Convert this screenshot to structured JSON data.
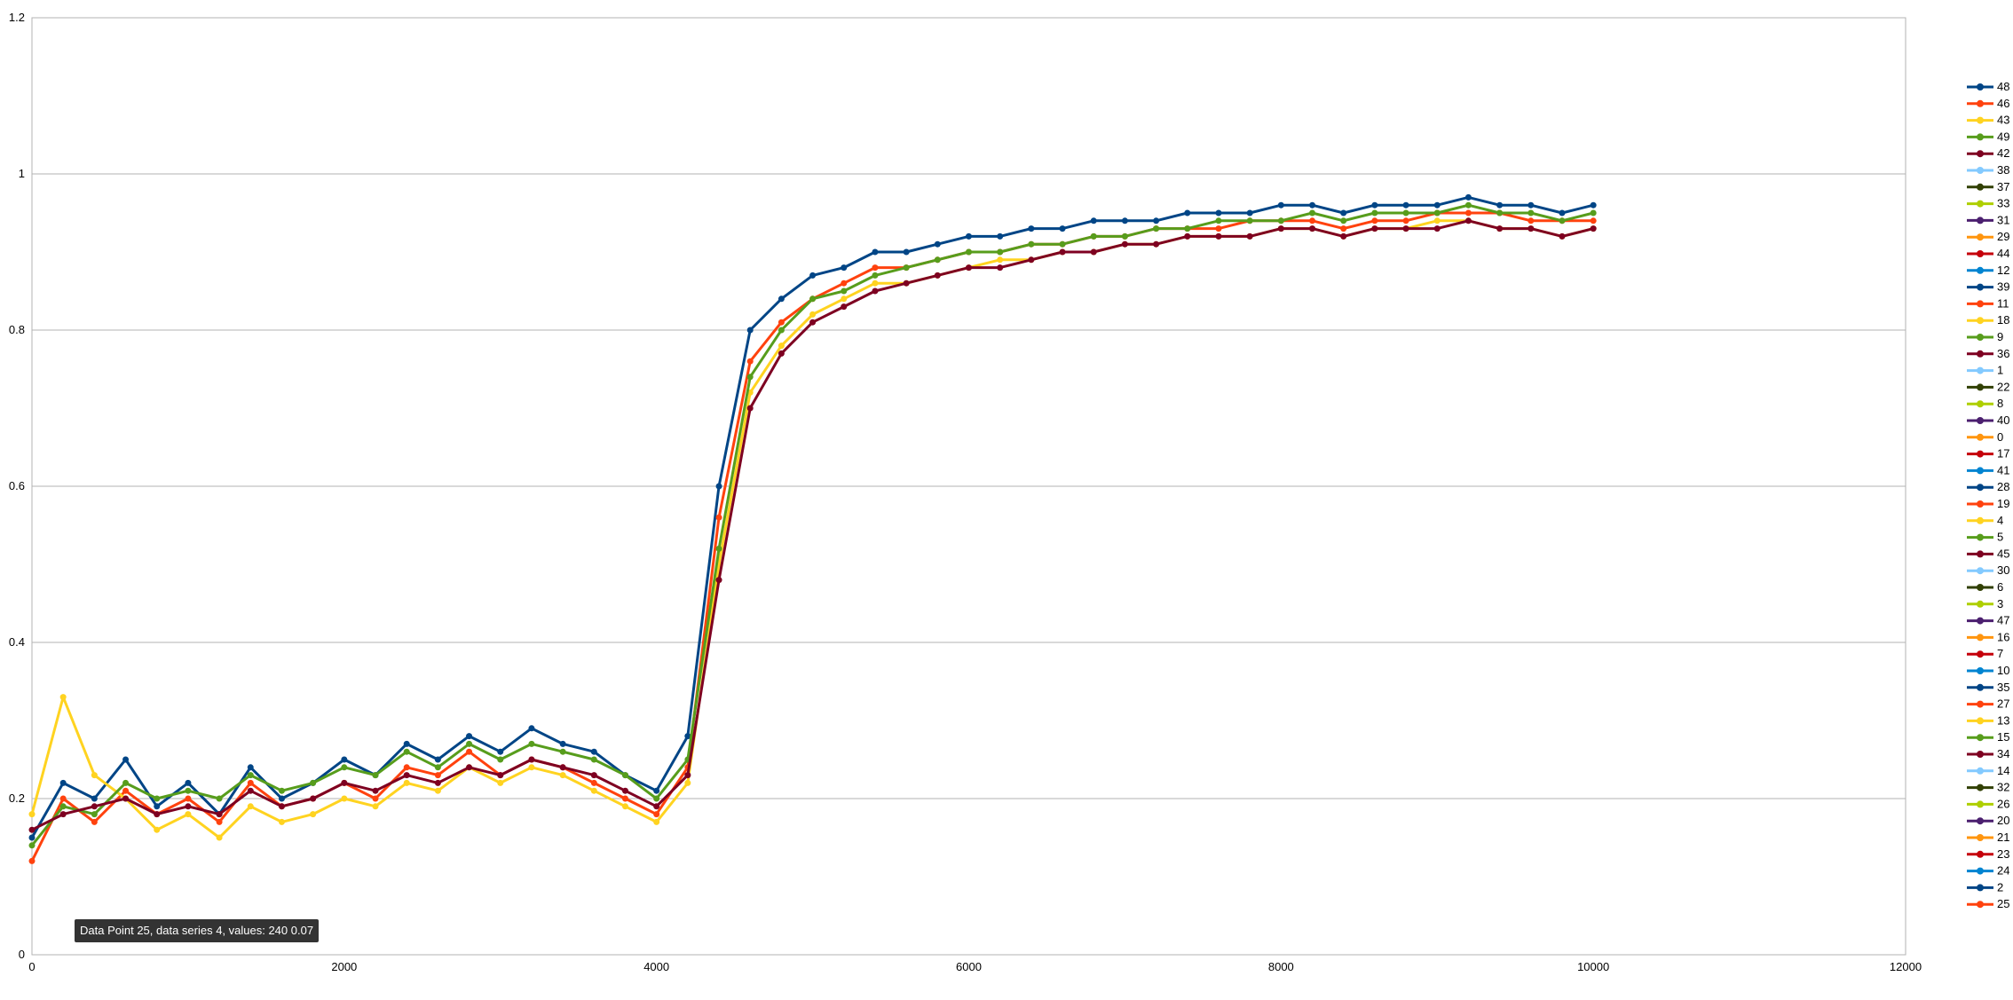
{
  "chart_data": {
    "type": "line",
    "title": "",
    "xlabel": "",
    "ylabel": "",
    "xlim": [
      0,
      12000
    ],
    "ylim": [
      0,
      1.2
    ],
    "x_ticks": [
      0,
      2000,
      4000,
      6000,
      8000,
      10000,
      12000
    ],
    "x_tick_labels": [
      "0",
      "2000",
      "4000",
      "6000",
      "8000",
      "10000",
      "12000"
    ],
    "y_ticks": [
      0,
      0.2,
      0.4,
      0.6,
      0.8,
      1,
      1.2
    ],
    "y_tick_labels": [
      "0",
      "0.2",
      "0.4",
      "0.6",
      "0.8",
      "1",
      "1.2"
    ],
    "grid": "horizontal major gridlines",
    "legend_position": "right",
    "x_sample_step": 200,
    "series": [
      {
        "name": "48",
        "color": "#004586",
        "marker": "square",
        "values": [
          0.15,
          0.22,
          0.2,
          0.25,
          0.19,
          0.22,
          0.18,
          0.24,
          0.2,
          0.22,
          0.25,
          0.23,
          0.27,
          0.25,
          0.28,
          0.26,
          0.29,
          0.27,
          0.26,
          0.23,
          0.21,
          0.28,
          0.6,
          0.8,
          0.84,
          0.87,
          0.88,
          0.9,
          0.9,
          0.91,
          0.92,
          0.92,
          0.93,
          0.93,
          0.94,
          0.94,
          0.94,
          0.95,
          0.95,
          0.95,
          0.96,
          0.96,
          0.95,
          0.96,
          0.96,
          0.96,
          0.97,
          0.96,
          0.96,
          0.95,
          0.96
        ]
      },
      {
        "name": "46",
        "color": "#ff420e",
        "marker": "diamond",
        "values": [
          0.12,
          0.2,
          0.17,
          0.21,
          0.18,
          0.2,
          0.17,
          0.22,
          0.19,
          0.2,
          0.22,
          0.2,
          0.24,
          0.23,
          0.26,
          0.23,
          0.25,
          0.24,
          0.22,
          0.2,
          0.18,
          0.24,
          0.56,
          0.76,
          0.81,
          0.84,
          0.86,
          0.88,
          0.88,
          0.89,
          0.9,
          0.9,
          0.91,
          0.91,
          0.92,
          0.92,
          0.93,
          0.93,
          0.93,
          0.94,
          0.94,
          0.94,
          0.93,
          0.94,
          0.94,
          0.95,
          0.95,
          0.95,
          0.94,
          0.94,
          0.94
        ]
      },
      {
        "name": "43",
        "color": "#ffd320",
        "marker": "triangle-down",
        "values": [
          0.18,
          0.33,
          0.23,
          0.2,
          0.16,
          0.18,
          0.15,
          0.19,
          0.17,
          0.18,
          0.2,
          0.19,
          0.22,
          0.21,
          0.24,
          0.22,
          0.24,
          0.23,
          0.21,
          0.19,
          0.17,
          0.22,
          0.5,
          0.72,
          0.78,
          0.82,
          0.84,
          0.86,
          0.86,
          0.87,
          0.88,
          0.89,
          0.89,
          0.9,
          0.9,
          0.91,
          0.91,
          0.92,
          0.92,
          0.92,
          0.93,
          0.93,
          0.92,
          0.93,
          0.93,
          0.94,
          0.94,
          0.93,
          0.93,
          0.92,
          0.93
        ]
      },
      {
        "name": "49",
        "color": "#579d1c",
        "marker": "triangle",
        "values": [
          0.14,
          0.19,
          0.18,
          0.22,
          0.2,
          0.21,
          0.2,
          0.23,
          0.21,
          0.22,
          0.24,
          0.23,
          0.26,
          0.24,
          0.27,
          0.25,
          0.27,
          0.26,
          0.25,
          0.23,
          0.2,
          0.25,
          0.52,
          0.74,
          0.8,
          0.84,
          0.85,
          0.87,
          0.88,
          0.89,
          0.9,
          0.9,
          0.91,
          0.91,
          0.92,
          0.92,
          0.93,
          0.93,
          0.94,
          0.94,
          0.94,
          0.95,
          0.94,
          0.95,
          0.95,
          0.95,
          0.96,
          0.95,
          0.95,
          0.94,
          0.95
        ]
      },
      {
        "name": "42",
        "color": "#7e0021",
        "marker": "triangle-right",
        "values": [
          0.16,
          0.18,
          0.19,
          0.2,
          0.18,
          0.19,
          0.18,
          0.21,
          0.19,
          0.2,
          0.22,
          0.21,
          0.23,
          0.22,
          0.24,
          0.23,
          0.25,
          0.24,
          0.23,
          0.21,
          0.19,
          0.23,
          0.48,
          0.7,
          0.77,
          0.81,
          0.83,
          0.85,
          0.86,
          0.87,
          0.88,
          0.88,
          0.89,
          0.9,
          0.9,
          0.91,
          0.91,
          0.92,
          0.92,
          0.92,
          0.93,
          0.93,
          0.92,
          0.93,
          0.93,
          0.93,
          0.94,
          0.93,
          0.93,
          0.92,
          0.93
        ]
      },
      {
        "name": "38",
        "color": "#83caff"
      },
      {
        "name": "37",
        "color": "#314004"
      },
      {
        "name": "33",
        "color": "#aecf00"
      },
      {
        "name": "31",
        "color": "#4b1f6f"
      },
      {
        "name": "29",
        "color": "#ff950e"
      },
      {
        "name": "44",
        "color": "#c5000b"
      },
      {
        "name": "12",
        "color": "#0084d1"
      },
      {
        "name": "39",
        "color": "#004586"
      },
      {
        "name": "11",
        "color": "#ff420e"
      },
      {
        "name": "18",
        "color": "#ffd320"
      },
      {
        "name": "9",
        "color": "#579d1c"
      },
      {
        "name": "36",
        "color": "#7e0021"
      },
      {
        "name": "1",
        "color": "#83caff"
      },
      {
        "name": "22",
        "color": "#314004"
      },
      {
        "name": "8",
        "color": "#aecf00"
      },
      {
        "name": "40",
        "color": "#4b1f6f"
      },
      {
        "name": "0",
        "color": "#ff950e"
      },
      {
        "name": "17",
        "color": "#c5000b"
      },
      {
        "name": "41",
        "color": "#0084d1"
      },
      {
        "name": "28",
        "color": "#004586"
      },
      {
        "name": "19",
        "color": "#ff420e"
      },
      {
        "name": "4",
        "color": "#ffd320"
      },
      {
        "name": "5",
        "color": "#579d1c"
      },
      {
        "name": "45",
        "color": "#7e0021"
      },
      {
        "name": "30",
        "color": "#83caff"
      },
      {
        "name": "6",
        "color": "#314004"
      },
      {
        "name": "3",
        "color": "#aecf00"
      },
      {
        "name": "47",
        "color": "#4b1f6f"
      },
      {
        "name": "16",
        "color": "#ff950e"
      },
      {
        "name": "7",
        "color": "#c5000b"
      },
      {
        "name": "10",
        "color": "#0084d1"
      },
      {
        "name": "35",
        "color": "#004586"
      },
      {
        "name": "27",
        "color": "#ff420e"
      },
      {
        "name": "13",
        "color": "#ffd320"
      },
      {
        "name": "15",
        "color": "#579d1c"
      },
      {
        "name": "34",
        "color": "#7e0021"
      },
      {
        "name": "14",
        "color": "#83caff"
      },
      {
        "name": "32",
        "color": "#314004"
      },
      {
        "name": "26",
        "color": "#aecf00"
      },
      {
        "name": "20",
        "color": "#4b1f6f"
      },
      {
        "name": "21",
        "color": "#ff950e"
      },
      {
        "name": "23",
        "color": "#c5000b"
      },
      {
        "name": "24",
        "color": "#0084d1"
      },
      {
        "name": "2",
        "color": "#004586"
      },
      {
        "name": "25",
        "color": "#ff420e"
      }
    ],
    "tooltip": "Data Point 25, data series 4, values: 240 0.07"
  }
}
